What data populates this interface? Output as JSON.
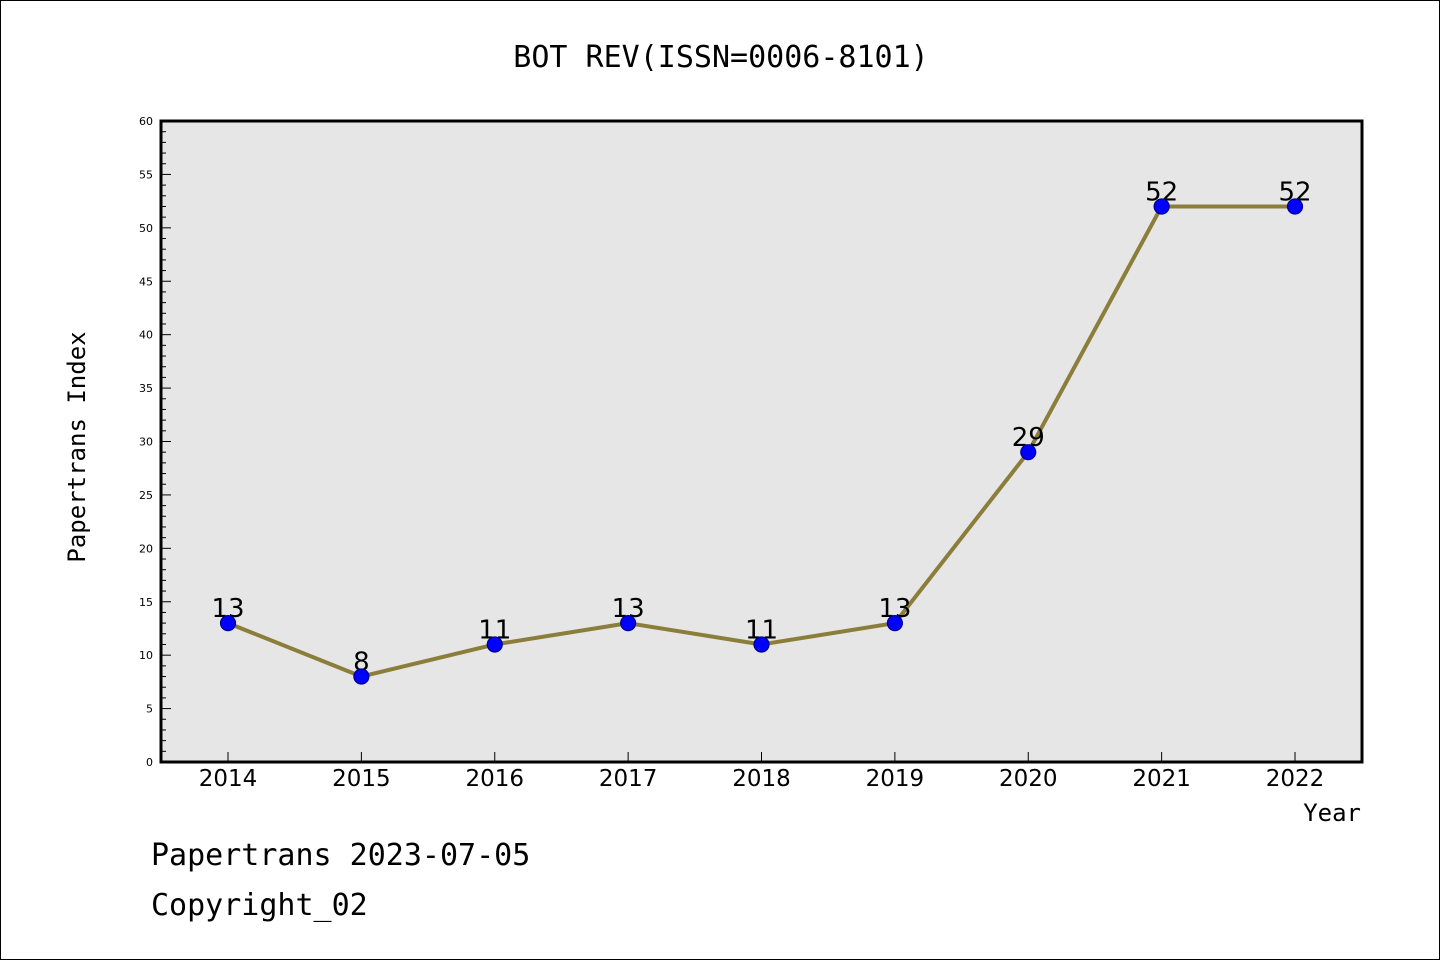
{
  "chart_data": {
    "type": "line",
    "title": "BOT REV(ISSN=0006-8101)",
    "xlabel": "Year",
    "ylabel": "Papertrans Index",
    "categories": [
      "2014",
      "2015",
      "2016",
      "2017",
      "2018",
      "2019",
      "2020",
      "2021",
      "2022"
    ],
    "series": [
      {
        "values": [
          13,
          8,
          11,
          13,
          11,
          13,
          29,
          52,
          52
        ]
      }
    ],
    "data_labels": [
      "13",
      "8",
      "11",
      "13",
      "11",
      "13",
      "29",
      "52",
      "52"
    ],
    "ylim": [
      0,
      60
    ],
    "y_ticks": [
      0,
      5,
      10,
      15,
      20,
      25,
      30,
      35,
      40,
      45,
      50,
      55,
      60
    ],
    "y_tick_labels": [
      "0",
      "5",
      "10",
      "15",
      "20",
      "25",
      "30",
      "35",
      "40",
      "45",
      "50",
      "55",
      "60"
    ],
    "grid": false,
    "colors": {
      "plot_background": "#e6e6e6",
      "line": "#8b7d3a",
      "marker_fill": "#0000ff",
      "marker_stroke": "#00008b",
      "axes": "#000000"
    }
  },
  "footer": {
    "date_line": "Papertrans 2023-07-05",
    "copyright": "Copyright_02"
  }
}
